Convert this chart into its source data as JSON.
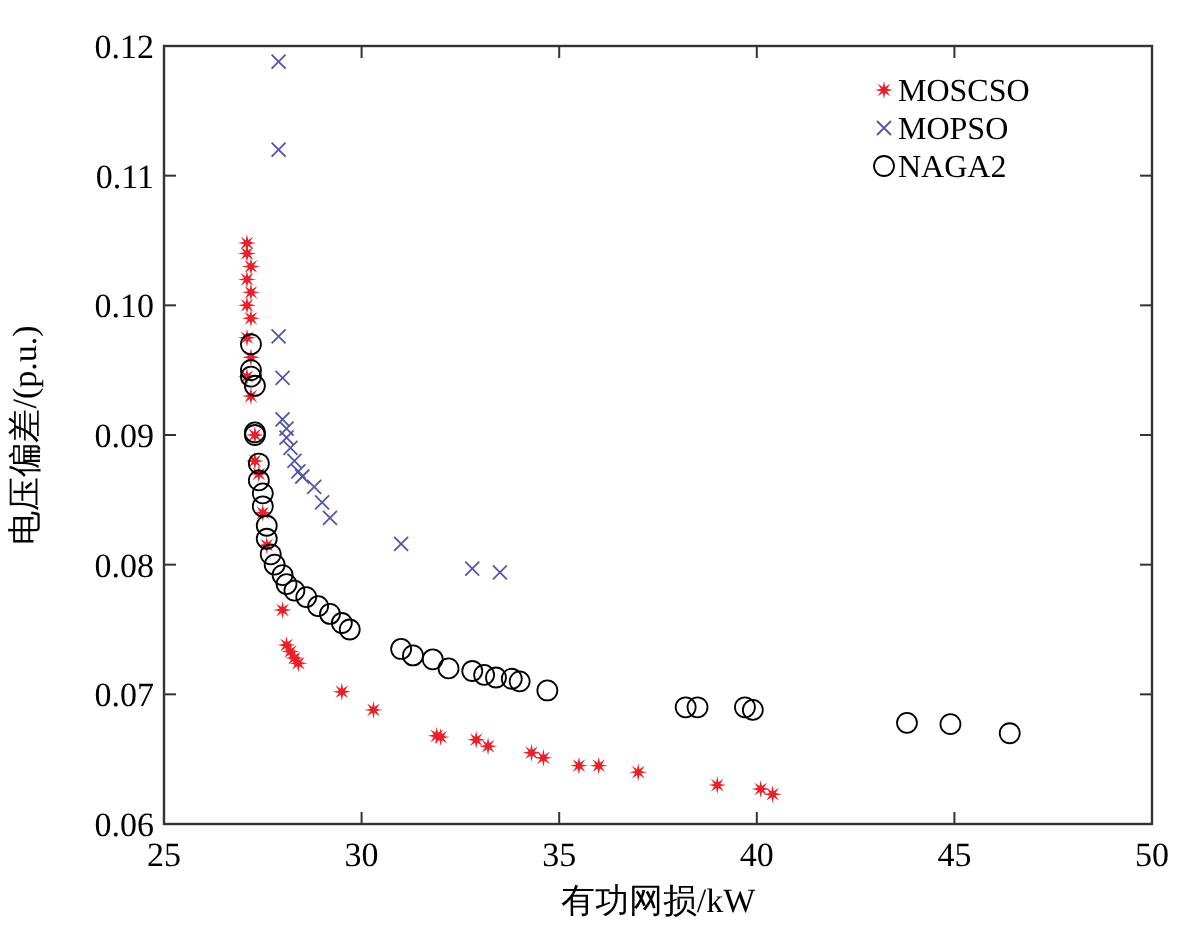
{
  "chart_data": {
    "type": "scatter",
    "xlabel": "有功网损/kW",
    "ylabel": "电压偏差/(p.u.)",
    "xlim": [
      25,
      50
    ],
    "ylim": [
      0.06,
      0.12
    ],
    "xticks": [
      25,
      30,
      35,
      40,
      45,
      50
    ],
    "yticks": [
      0.06,
      0.07,
      0.08,
      0.09,
      {
        "value": 0.1,
        "label": "0.10"
      },
      0.11,
      0.12
    ],
    "legend": "top right",
    "grid": false,
    "series": [
      {
        "name": "MOSCSO",
        "color": "#e8202a",
        "marker": "star",
        "x": [
          27.1,
          27.1,
          27.2,
          27.1,
          27.2,
          27.1,
          27.2,
          27.1,
          27.2,
          27.1,
          27.2,
          27.3,
          27.3,
          27.4,
          27.5,
          27.6,
          28.0,
          28.1,
          28.2,
          28.3,
          28.4,
          29.5,
          30.3,
          31.9,
          32.0,
          32.9,
          33.2,
          34.3,
          34.6,
          35.5,
          36.0,
          37.0,
          39.0,
          40.1,
          40.4
        ],
        "values": [
          0.1048,
          0.104,
          0.103,
          0.102,
          0.101,
          0.1,
          0.099,
          0.0975,
          0.096,
          0.0945,
          0.093,
          0.09,
          0.088,
          0.087,
          0.084,
          0.0815,
          0.0765,
          0.0738,
          0.0733,
          0.0728,
          0.0724,
          0.0702,
          0.0688,
          0.0668,
          0.0667,
          0.0665,
          0.066,
          0.0655,
          0.0651,
          0.0645,
          0.0645,
          0.064,
          0.063,
          0.0627,
          0.0623
        ]
      },
      {
        "name": "MOPSO",
        "color": "#5555aa",
        "marker": "cross",
        "x": [
          27.9,
          27.9,
          27.9,
          28.0,
          28.0,
          28.1,
          28.1,
          28.2,
          28.3,
          28.4,
          28.5,
          28.8,
          29.0,
          29.2,
          31.0,
          32.8,
          33.5
        ],
        "values": [
          0.1188,
          0.112,
          0.0976,
          0.0944,
          0.0912,
          0.0905,
          0.0898,
          0.089,
          0.088,
          0.0872,
          0.0868,
          0.086,
          0.0848,
          0.0836,
          0.0816,
          0.0797,
          0.0794
        ]
      },
      {
        "name": "NAGA2",
        "color": "#000000",
        "marker": "circle",
        "x": [
          27.2,
          27.2,
          27.2,
          27.3,
          27.3,
          27.3,
          27.4,
          27.4,
          27.5,
          27.5,
          27.6,
          27.6,
          27.7,
          27.8,
          28.0,
          28.1,
          28.3,
          28.6,
          28.9,
          29.2,
          29.5,
          29.7,
          31.0,
          31.3,
          31.8,
          32.2,
          32.8,
          33.1,
          33.4,
          33.8,
          34.0,
          34.7,
          38.2,
          38.5,
          39.7,
          39.9,
          43.8,
          44.9,
          46.4
        ],
        "values": [
          0.097,
          0.095,
          0.0945,
          0.0938,
          0.0902,
          0.09,
          0.0878,
          0.0865,
          0.0855,
          0.0845,
          0.083,
          0.082,
          0.0808,
          0.08,
          0.0792,
          0.0785,
          0.078,
          0.0775,
          0.0768,
          0.0762,
          0.0755,
          0.075,
          0.0735,
          0.073,
          0.0727,
          0.072,
          0.0718,
          0.0715,
          0.0713,
          0.0712,
          0.071,
          0.0703,
          0.069,
          0.069,
          0.069,
          0.0688,
          0.0678,
          0.0677,
          0.067
        ]
      }
    ]
  }
}
